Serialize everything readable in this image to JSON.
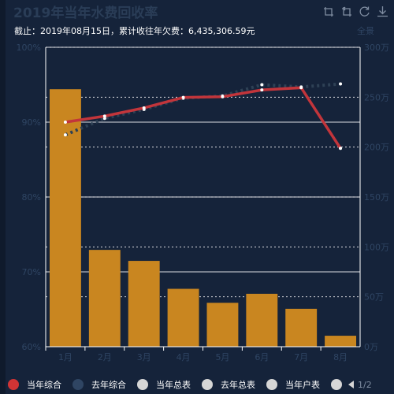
{
  "title": "2019年当年水费回收率",
  "subtitle": "截止：2019年08月15日，累计收往年欠费：6,435,306.59元",
  "toolbox": [
    {
      "icon": "zoom-icon",
      "label": ""
    },
    {
      "icon": "zoom-reset-icon",
      "label": ""
    },
    {
      "icon": "refresh-icon",
      "label": ""
    },
    {
      "icon": "download-icon",
      "label": ""
    }
  ],
  "unit_label": "全景",
  "legend": {
    "items": [
      {
        "name": "当年综合",
        "color": "#d13435"
      },
      {
        "name": "去年综合",
        "color": "#2f4563"
      },
      {
        "name": "当年总表",
        "color": "#d6d6d6"
      },
      {
        "name": "去年总表",
        "color": "#d6d6d6"
      },
      {
        "name": "当年户表",
        "color": "#d6d6d6"
      },
      {
        "name": "",
        "color": "#d6d6d6"
      }
    ],
    "page": "1/2"
  },
  "colors": {
    "bar": "#c98620",
    "current_line": "#c2353b",
    "last_year_line": "#2e4155",
    "axis_text": "#2f4563",
    "grid": "#ffffff",
    "background": "#15233a"
  },
  "chart_data": {
    "type": "bar",
    "categories": [
      "1月",
      "2月",
      "3月",
      "4月",
      "5月",
      "6月",
      "7月",
      "8月"
    ],
    "left_axis": {
      "min": 60,
      "max": 100,
      "ticks": [
        "60%",
        "70%",
        "80%",
        "90%",
        "100%"
      ]
    },
    "right_axis": {
      "min": 0,
      "max": 300,
      "ticks": [
        "0万",
        "50万",
        "100万",
        "150万",
        "200万",
        "250万",
        "300万"
      ]
    },
    "series": [
      {
        "name": "",
        "type": "bar",
        "axis": "right",
        "values": [
          258,
          97,
          86,
          58,
          44,
          53,
          38,
          11
        ]
      },
      {
        "name": "当年综合",
        "type": "line",
        "axis": "left",
        "values": [
          90.0,
          90.8,
          91.9,
          93.3,
          93.4,
          94.3,
          94.6,
          86.5
        ]
      },
      {
        "name": "去年综合",
        "type": "line",
        "axis": "left",
        "values": [
          88.3,
          90.5,
          91.7,
          93.2,
          93.5,
          95.0,
          94.7,
          95.1
        ]
      }
    ]
  }
}
